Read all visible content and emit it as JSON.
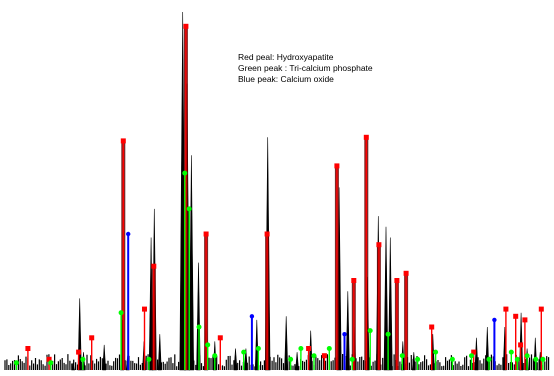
{
  "chart_data": {
    "type": "line",
    "title": "",
    "xlabel": "",
    "ylabel": "",
    "grid": false,
    "legend_lines": [
      "Red peal: Hydroxyapatite",
      "Green peak : Tri-calcium phosphate",
      "Blue peak: Calcium oxide"
    ],
    "colors": {
      "background": "#ffffff",
      "pattern": "#000000",
      "hydroxyapatite": "#ff0000",
      "tricalcium_phosphate": "#00ff00",
      "calcium_oxide": "#0000ff",
      "fill_dark_red": "#6b0000"
    },
    "x_range": [
      0,
      100
    ],
    "y_range": [
      0,
      100
    ],
    "black_peaks": [
      {
        "x": 12.5,
        "y": 2
      },
      {
        "x": 13.7,
        "y": 20
      },
      {
        "x": 14.4,
        "y": 5
      },
      {
        "x": 18.2,
        "y": 7
      },
      {
        "x": 21.5,
        "y": 14
      },
      {
        "x": 22.5,
        "y": 4
      },
      {
        "x": 25.5,
        "y": 8
      },
      {
        "x": 26.8,
        "y": 37
      },
      {
        "x": 27.4,
        "y": 45
      },
      {
        "x": 28.4,
        "y": 10
      },
      {
        "x": 32.6,
        "y": 100
      },
      {
        "x": 33.4,
        "y": 80
      },
      {
        "x": 34.2,
        "y": 60
      },
      {
        "x": 35.5,
        "y": 30
      },
      {
        "x": 36.9,
        "y": 18
      },
      {
        "x": 38.5,
        "y": 8
      },
      {
        "x": 42.3,
        "y": 6
      },
      {
        "x": 44.2,
        "y": 6
      },
      {
        "x": 46.2,
        "y": 14
      },
      {
        "x": 48.2,
        "y": 65
      },
      {
        "x": 51.6,
        "y": 15
      },
      {
        "x": 53.6,
        "y": 5
      },
      {
        "x": 56.1,
        "y": 11
      },
      {
        "x": 61.3,
        "y": 51
      },
      {
        "x": 62.9,
        "y": 22
      },
      {
        "x": 64.1,
        "y": 12
      },
      {
        "x": 66.5,
        "y": 26
      },
      {
        "x": 68.5,
        "y": 43
      },
      {
        "x": 69.9,
        "y": 40
      },
      {
        "x": 70.7,
        "y": 37
      },
      {
        "x": 73.0,
        "y": 8
      },
      {
        "x": 75.0,
        "y": 5
      },
      {
        "x": 78.5,
        "y": 10
      },
      {
        "x": 86.5,
        "y": 9
      },
      {
        "x": 88.5,
        "y": 12
      },
      {
        "x": 91.7,
        "y": 12
      },
      {
        "x": 94.7,
        "y": 16
      },
      {
        "x": 95.8,
        "y": 6
      },
      {
        "x": 97.3,
        "y": 9
      },
      {
        "x": 98.2,
        "y": 5
      }
    ],
    "series": [
      {
        "name": "Hydroxyapatite",
        "points": [
          {
            "x": 4.2,
            "y": 6
          },
          {
            "x": 8.1,
            "y": 3
          },
          {
            "x": 13.5,
            "y": 5
          },
          {
            "x": 15.9,
            "y": 9
          },
          {
            "x": 21.7,
            "y": 64
          },
          {
            "x": 25.6,
            "y": 17
          },
          {
            "x": 27.3,
            "y": 29
          },
          {
            "x": 33.2,
            "y": 96
          },
          {
            "x": 36.9,
            "y": 38
          },
          {
            "x": 39.5,
            "y": 9
          },
          {
            "x": 48.1,
            "y": 38
          },
          {
            "x": 55.7,
            "y": 6
          },
          {
            "x": 58.6,
            "y": 4
          },
          {
            "x": 60.9,
            "y": 57
          },
          {
            "x": 64.0,
            "y": 25
          },
          {
            "x": 66.3,
            "y": 65
          },
          {
            "x": 68.6,
            "y": 35
          },
          {
            "x": 71.9,
            "y": 25
          },
          {
            "x": 73.6,
            "y": 27
          },
          {
            "x": 78.3,
            "y": 12
          },
          {
            "x": 86.0,
            "y": 5
          },
          {
            "x": 91.9,
            "y": 17
          },
          {
            "x": 93.7,
            "y": 15
          },
          {
            "x": 94.6,
            "y": 7
          },
          {
            "x": 95.4,
            "y": 14
          },
          {
            "x": 98.4,
            "y": 17
          }
        ]
      },
      {
        "name": "Tri-calcium phosphate",
        "points": [
          {
            "x": 2.1,
            "y": 2
          },
          {
            "x": 8.4,
            "y": 2
          },
          {
            "x": 14.3,
            "y": 3
          },
          {
            "x": 21.3,
            "y": 16
          },
          {
            "x": 26.4,
            "y": 3
          },
          {
            "x": 33.0,
            "y": 55
          },
          {
            "x": 33.8,
            "y": 45
          },
          {
            "x": 35.6,
            "y": 12
          },
          {
            "x": 37.2,
            "y": 7
          },
          {
            "x": 38.5,
            "y": 4
          },
          {
            "x": 43.8,
            "y": 5
          },
          {
            "x": 46.5,
            "y": 6
          },
          {
            "x": 52.4,
            "y": 3
          },
          {
            "x": 54.3,
            "y": 6
          },
          {
            "x": 56.7,
            "y": 4
          },
          {
            "x": 59.5,
            "y": 6
          },
          {
            "x": 63.7,
            "y": 3
          },
          {
            "x": 67.0,
            "y": 11
          },
          {
            "x": 70.3,
            "y": 10
          },
          {
            "x": 72.9,
            "y": 4
          },
          {
            "x": 75.7,
            "y": 3
          },
          {
            "x": 79.0,
            "y": 5
          },
          {
            "x": 82.1,
            "y": 3
          },
          {
            "x": 85.6,
            "y": 4
          },
          {
            "x": 88.8,
            "y": 3
          },
          {
            "x": 92.9,
            "y": 5
          },
          {
            "x": 94.0,
            "y": 3
          },
          {
            "x": 95.8,
            "y": 4
          },
          {
            "x": 97.4,
            "y": 3
          },
          {
            "x": 98.7,
            "y": 3
          }
        ]
      },
      {
        "name": "Calcium oxide",
        "points": [
          {
            "x": 22.6,
            "y": 38
          },
          {
            "x": 45.3,
            "y": 15
          },
          {
            "x": 62.3,
            "y": 10
          },
          {
            "x": 89.8,
            "y": 14
          }
        ]
      }
    ]
  }
}
